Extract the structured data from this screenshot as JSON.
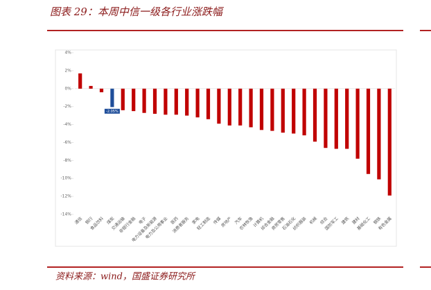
{
  "chart_data": {
    "type": "bar",
    "title": "图表 29：本周中信一级各行业涨跌幅",
    "source": "资料来源：wind，国盛证券研究所",
    "categories": [
      "通信",
      "银行",
      "食品饮料",
      "煤炭",
      "交通运输",
      "非银行金融",
      "电子",
      "电力设备及新能源",
      "电力及公用事业",
      "医药",
      "消费者服务",
      "家电",
      "轻工制造",
      "传媒",
      "房地产",
      "汽车",
      "农林牧渔",
      "计算机",
      "综合金融",
      "商贸零售",
      "石油石化",
      "纺织服装",
      "机械",
      "综合",
      "国防军工",
      "建筑",
      "建材",
      "基础化工",
      "钢铁",
      "有色金属"
    ],
    "values": [
      1.7,
      0.3,
      -0.4,
      -2.05,
      -2.4,
      -2.5,
      -2.7,
      -2.8,
      -2.9,
      -2.9,
      -3.0,
      -3.2,
      -3.4,
      -3.9,
      -4.1,
      -4.1,
      -4.3,
      -4.6,
      -4.7,
      -4.9,
      -5.0,
      -5.2,
      -5.9,
      -6.6,
      -6.7,
      -6.7,
      -7.8,
      -9.5,
      -10.1,
      -11.9
    ],
    "value_labels": [
      null,
      null,
      null,
      "-2.05%",
      null,
      null,
      null,
      null,
      null,
      null,
      null,
      null,
      null,
      null,
      null,
      null,
      null,
      null,
      null,
      null,
      null,
      null,
      null,
      null,
      null,
      null,
      null,
      null,
      null,
      null
    ],
    "colors": [
      "#c00000",
      "#c00000",
      "#c00000",
      "#1f4e9a",
      "#c00000",
      "#c00000",
      "#c00000",
      "#c00000",
      "#c00000",
      "#c00000",
      "#c00000",
      "#c00000",
      "#c00000",
      "#c00000",
      "#c00000",
      "#c00000",
      "#c00000",
      "#c00000",
      "#c00000",
      "#c00000",
      "#c00000",
      "#c00000",
      "#c00000",
      "#c00000",
      "#c00000",
      "#c00000",
      "#c00000",
      "#c00000",
      "#c00000",
      "#c00000"
    ],
    "ylim": [
      -14,
      4
    ],
    "yticks": [
      {
        "value": -14,
        "label": "-14%"
      },
      {
        "value": -12,
        "label": "-12%"
      },
      {
        "value": -10,
        "label": "-10%"
      },
      {
        "value": -8,
        "label": "-8%"
      },
      {
        "value": -6,
        "label": "-6%"
      },
      {
        "value": -4,
        "label": "-4%"
      },
      {
        "value": -2,
        "label": "-2%"
      },
      {
        "value": 0,
        "label": "0%"
      },
      {
        "value": 2,
        "label": "2%"
      },
      {
        "value": 4,
        "label": "4%"
      }
    ],
    "grid": false
  }
}
